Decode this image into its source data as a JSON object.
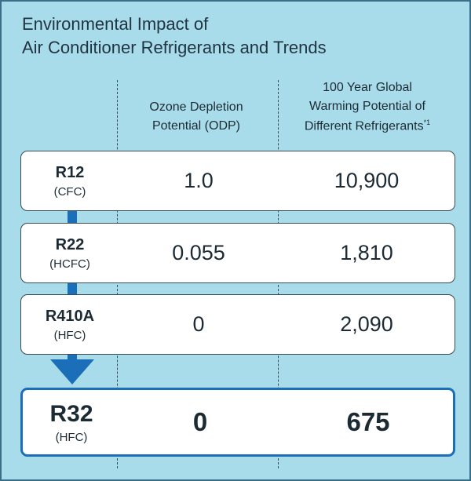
{
  "title": [
    "Environmental Impact of",
    "Air Conditioner Refrigerants and Trends"
  ],
  "table": {
    "headers": [
      {
        "lines": [
          "Ozone Depletion",
          "Potential (ODP)"
        ]
      },
      {
        "lines": [
          "100 Year Global",
          "Warming Potential of",
          "Different Refrigerants"
        ],
        "footnote": "*1"
      }
    ],
    "rows": [
      {
        "name": "R12",
        "class": "(CFC)",
        "odp": "1.0",
        "gwp": "10,900"
      },
      {
        "name": "R22",
        "class": "(HCFC)",
        "odp": "0.055",
        "gwp": "1,810"
      },
      {
        "name": "R410A",
        "class": "(HFC)",
        "odp": "0",
        "gwp": "2,090"
      },
      {
        "name": "R32",
        "class": "(HFC)",
        "odp": "0",
        "gwp": "675"
      }
    ]
  }
}
